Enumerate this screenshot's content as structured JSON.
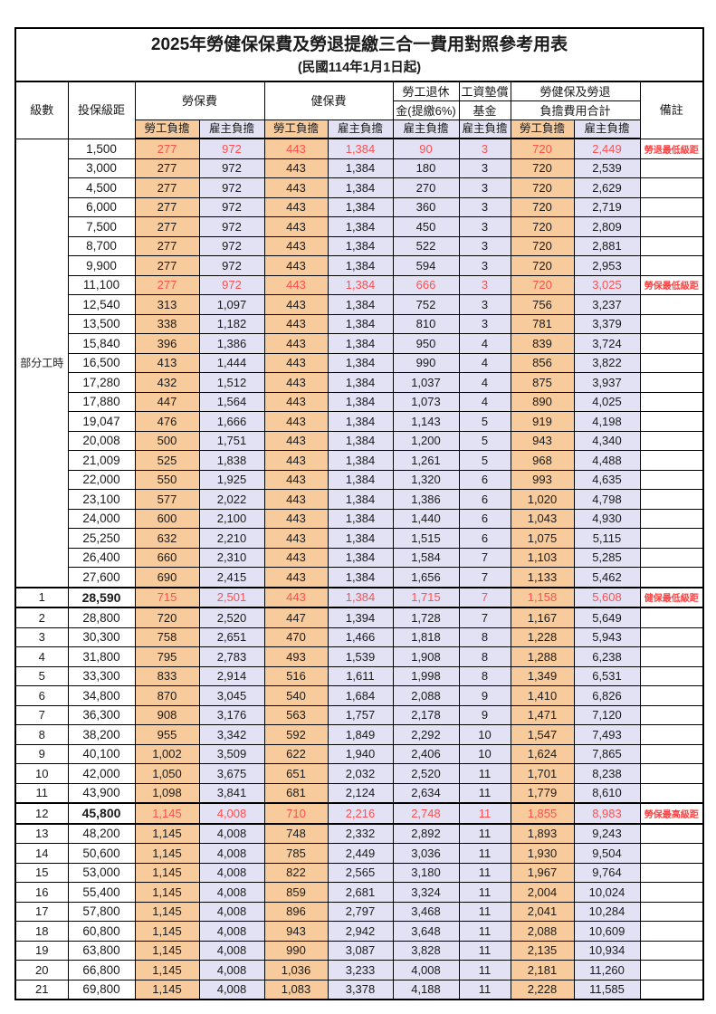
{
  "title": "2025年勞健保保費及勞退提繳三合一費用對照參考用表",
  "subtitle": "(民國114年1月1日起)",
  "colors": {
    "employee_bg": "#F8CB9C",
    "employer_bg": "#E3E1F4",
    "highlight_text": "#FF5050",
    "remark_text": "#FF4040",
    "border": "#000000"
  },
  "header": {
    "level": "級數",
    "bracket": "投保級距",
    "labor_ins": "勞保費",
    "health_ins": "健保費",
    "pension_line1": "勞工退休",
    "pension_line2": "金(提繳6%)",
    "arrears_line1": "工資墊償",
    "arrears_line2": "基金",
    "total_line1": "勞健保及勞退",
    "total_line2": "負擔費用合計",
    "remark": "備註",
    "employee": "勞工負擔",
    "employer": "雇主負擔"
  },
  "part_time_label": "部分工時",
  "rows": [
    {
      "level": "部分工時",
      "level_rowspan": 23,
      "bracket": "1,500",
      "values": [
        "277",
        "972",
        "443",
        "1,384",
        "90",
        "3",
        "720",
        "2,449"
      ],
      "remark": "勞退最低級距",
      "highlight": true
    },
    {
      "bracket": "3,000",
      "values": [
        "277",
        "972",
        "443",
        "1,384",
        "180",
        "3",
        "720",
        "2,539"
      ],
      "remark": ""
    },
    {
      "bracket": "4,500",
      "values": [
        "277",
        "972",
        "443",
        "1,384",
        "270",
        "3",
        "720",
        "2,629"
      ],
      "remark": ""
    },
    {
      "bracket": "6,000",
      "values": [
        "277",
        "972",
        "443",
        "1,384",
        "360",
        "3",
        "720",
        "2,719"
      ],
      "remark": ""
    },
    {
      "bracket": "7,500",
      "values": [
        "277",
        "972",
        "443",
        "1,384",
        "450",
        "3",
        "720",
        "2,809"
      ],
      "remark": ""
    },
    {
      "bracket": "8,700",
      "values": [
        "277",
        "972",
        "443",
        "1,384",
        "522",
        "3",
        "720",
        "2,881"
      ],
      "remark": ""
    },
    {
      "bracket": "9,900",
      "values": [
        "277",
        "972",
        "443",
        "1,384",
        "594",
        "3",
        "720",
        "2,953"
      ],
      "remark": ""
    },
    {
      "bracket": "11,100",
      "values": [
        "277",
        "972",
        "443",
        "1,384",
        "666",
        "3",
        "720",
        "3,025"
      ],
      "remark": "勞保最低級距",
      "highlight": true
    },
    {
      "bracket": "12,540",
      "values": [
        "313",
        "1,097",
        "443",
        "1,384",
        "752",
        "3",
        "756",
        "3,237"
      ],
      "remark": ""
    },
    {
      "bracket": "13,500",
      "values": [
        "338",
        "1,182",
        "443",
        "1,384",
        "810",
        "3",
        "781",
        "3,379"
      ],
      "remark": ""
    },
    {
      "bracket": "15,840",
      "values": [
        "396",
        "1,386",
        "443",
        "1,384",
        "950",
        "4",
        "839",
        "3,724"
      ],
      "remark": ""
    },
    {
      "bracket": "16,500",
      "values": [
        "413",
        "1,444",
        "443",
        "1,384",
        "990",
        "4",
        "856",
        "3,822"
      ],
      "remark": ""
    },
    {
      "bracket": "17,280",
      "values": [
        "432",
        "1,512",
        "443",
        "1,384",
        "1,037",
        "4",
        "875",
        "3,937"
      ],
      "remark": ""
    },
    {
      "bracket": "17,880",
      "values": [
        "447",
        "1,564",
        "443",
        "1,384",
        "1,073",
        "4",
        "890",
        "4,025"
      ],
      "remark": ""
    },
    {
      "bracket": "19,047",
      "values": [
        "476",
        "1,666",
        "443",
        "1,384",
        "1,143",
        "5",
        "919",
        "4,198"
      ],
      "remark": ""
    },
    {
      "bracket": "20,008",
      "values": [
        "500",
        "1,751",
        "443",
        "1,384",
        "1,200",
        "5",
        "943",
        "4,340"
      ],
      "remark": ""
    },
    {
      "bracket": "21,009",
      "values": [
        "525",
        "1,838",
        "443",
        "1,384",
        "1,261",
        "5",
        "968",
        "4,488"
      ],
      "remark": ""
    },
    {
      "bracket": "22,000",
      "values": [
        "550",
        "1,925",
        "443",
        "1,384",
        "1,320",
        "6",
        "993",
        "4,635"
      ],
      "remark": ""
    },
    {
      "bracket": "23,100",
      "values": [
        "577",
        "2,022",
        "443",
        "1,384",
        "1,386",
        "6",
        "1,020",
        "4,798"
      ],
      "remark": ""
    },
    {
      "bracket": "24,000",
      "values": [
        "600",
        "2,100",
        "443",
        "1,384",
        "1,440",
        "6",
        "1,043",
        "4,930"
      ],
      "remark": ""
    },
    {
      "bracket": "25,250",
      "values": [
        "632",
        "2,210",
        "443",
        "1,384",
        "1,515",
        "6",
        "1,075",
        "5,115"
      ],
      "remark": ""
    },
    {
      "bracket": "26,400",
      "values": [
        "660",
        "2,310",
        "443",
        "1,384",
        "1,584",
        "7",
        "1,103",
        "5,285"
      ],
      "remark": ""
    },
    {
      "bracket": "27,600",
      "values": [
        "690",
        "2,415",
        "443",
        "1,384",
        "1,656",
        "7",
        "1,133",
        "5,462"
      ],
      "remark": ""
    },
    {
      "level": "1",
      "bracket": "28,590",
      "values": [
        "715",
        "2,501",
        "443",
        "1,384",
        "1,715",
        "7",
        "1,158",
        "5,608"
      ],
      "remark": "健保最低級距",
      "highlight": true,
      "milestone": true
    },
    {
      "level": "2",
      "bracket": "28,800",
      "values": [
        "720",
        "2,520",
        "447",
        "1,394",
        "1,728",
        "7",
        "1,167",
        "5,649"
      ],
      "remark": ""
    },
    {
      "level": "3",
      "bracket": "30,300",
      "values": [
        "758",
        "2,651",
        "470",
        "1,466",
        "1,818",
        "8",
        "1,228",
        "5,943"
      ],
      "remark": ""
    },
    {
      "level": "4",
      "bracket": "31,800",
      "values": [
        "795",
        "2,783",
        "493",
        "1,539",
        "1,908",
        "8",
        "1,288",
        "6,238"
      ],
      "remark": ""
    },
    {
      "level": "5",
      "bracket": "33,300",
      "values": [
        "833",
        "2,914",
        "516",
        "1,611",
        "1,998",
        "8",
        "1,349",
        "6,531"
      ],
      "remark": ""
    },
    {
      "level": "6",
      "bracket": "34,800",
      "values": [
        "870",
        "3,045",
        "540",
        "1,684",
        "2,088",
        "9",
        "1,410",
        "6,826"
      ],
      "remark": ""
    },
    {
      "level": "7",
      "bracket": "36,300",
      "values": [
        "908",
        "3,176",
        "563",
        "1,757",
        "2,178",
        "9",
        "1,471",
        "7,120"
      ],
      "remark": ""
    },
    {
      "level": "8",
      "bracket": "38,200",
      "values": [
        "955",
        "3,342",
        "592",
        "1,849",
        "2,292",
        "10",
        "1,547",
        "7,493"
      ],
      "remark": ""
    },
    {
      "level": "9",
      "bracket": "40,100",
      "values": [
        "1,002",
        "3,509",
        "622",
        "1,940",
        "2,406",
        "10",
        "1,624",
        "7,865"
      ],
      "remark": ""
    },
    {
      "level": "10",
      "bracket": "42,000",
      "values": [
        "1,050",
        "3,675",
        "651",
        "2,032",
        "2,520",
        "11",
        "1,701",
        "8,238"
      ],
      "remark": ""
    },
    {
      "level": "11",
      "bracket": "43,900",
      "values": [
        "1,098",
        "3,841",
        "681",
        "2,124",
        "2,634",
        "11",
        "1,779",
        "8,610"
      ],
      "remark": ""
    },
    {
      "level": "12",
      "bracket": "45,800",
      "values": [
        "1,145",
        "4,008",
        "710",
        "2,216",
        "2,748",
        "11",
        "1,855",
        "8,983"
      ],
      "remark": "勞保最高級距",
      "highlight": true,
      "milestone": true
    },
    {
      "level": "13",
      "bracket": "48,200",
      "values": [
        "1,145",
        "4,008",
        "748",
        "2,332",
        "2,892",
        "11",
        "1,893",
        "9,243"
      ],
      "remark": ""
    },
    {
      "level": "14",
      "bracket": "50,600",
      "values": [
        "1,145",
        "4,008",
        "785",
        "2,449",
        "3,036",
        "11",
        "1,930",
        "9,504"
      ],
      "remark": ""
    },
    {
      "level": "15",
      "bracket": "53,000",
      "values": [
        "1,145",
        "4,008",
        "822",
        "2,565",
        "3,180",
        "11",
        "1,967",
        "9,764"
      ],
      "remark": ""
    },
    {
      "level": "16",
      "bracket": "55,400",
      "values": [
        "1,145",
        "4,008",
        "859",
        "2,681",
        "3,324",
        "11",
        "2,004",
        "10,024"
      ],
      "remark": ""
    },
    {
      "level": "17",
      "bracket": "57,800",
      "values": [
        "1,145",
        "4,008",
        "896",
        "2,797",
        "3,468",
        "11",
        "2,041",
        "10,284"
      ],
      "remark": ""
    },
    {
      "level": "18",
      "bracket": "60,800",
      "values": [
        "1,145",
        "4,008",
        "943",
        "2,942",
        "3,648",
        "11",
        "2,088",
        "10,609"
      ],
      "remark": ""
    },
    {
      "level": "19",
      "bracket": "63,800",
      "values": [
        "1,145",
        "4,008",
        "990",
        "3,087",
        "3,828",
        "11",
        "2,135",
        "10,934"
      ],
      "remark": ""
    },
    {
      "level": "20",
      "bracket": "66,800",
      "values": [
        "1,145",
        "4,008",
        "1,036",
        "3,233",
        "4,008",
        "11",
        "2,181",
        "11,260"
      ],
      "remark": ""
    },
    {
      "level": "21",
      "bracket": "69,800",
      "values": [
        "1,145",
        "4,008",
        "1,083",
        "3,378",
        "4,188",
        "11",
        "2,228",
        "11,585"
      ],
      "remark": ""
    }
  ]
}
